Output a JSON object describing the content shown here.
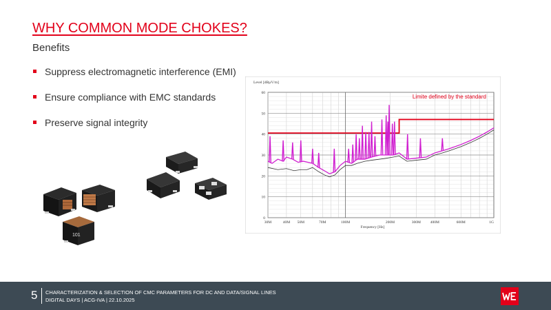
{
  "slide": {
    "title": "WHY COMMON MODE CHOKES?",
    "subtitle": "Benefits",
    "bullets": [
      "Suppress electromagnetic interference (EMI)",
      "Ensure compliance with EMC standards",
      "Preserve signal integrity"
    ],
    "accent_color": "#e2001a"
  },
  "components": {
    "part_marking": "101"
  },
  "footer": {
    "page_number": "5",
    "line1": "CHARACTERIZATION & SELECTION OF CMC PARAMETERS FOR DC AND DATA/SIGNAL LINES",
    "line2": "DIGITAL DAYS | ACG-IVA | 22.10.2025",
    "background_color": "#3d4a54",
    "logo_icon": "we-logo-icon"
  },
  "chart_data": {
    "type": "line",
    "title": "",
    "ylabel": "Level [dBµV/m]",
    "xlabel": "Frequency [Hz]",
    "x_scale": "log",
    "xlim": [
      30,
      1000
    ],
    "ylim": [
      0,
      60
    ],
    "y_ticks": [
      "0",
      "10",
      "20",
      "30",
      "40",
      "50",
      "60"
    ],
    "x_tick_values": [
      30,
      40,
      50,
      70,
      100,
      200,
      300,
      400,
      600,
      1000
    ],
    "x_tick_labels": [
      "30M",
      "40M",
      "50M",
      "70M",
      "100M",
      "200M",
      "300M",
      "400M",
      "600M",
      "1G"
    ],
    "grid": true,
    "annotation": "Limite defined by the standard",
    "series": [
      {
        "color": "#e2001a",
        "step": true,
        "x": [
          30,
          230,
          230,
          1000
        ],
        "y": [
          40.5,
          40.5,
          47,
          47
        ]
      },
      {
        "color": "#d01fd0",
        "x": [
          30,
          32,
          35,
          38,
          40,
          44,
          48,
          52,
          56,
          60,
          66,
          72,
          78,
          85,
          92,
          100,
          110,
          120,
          135,
          150,
          170,
          190,
          210,
          230,
          260,
          300,
          350,
          400,
          450,
          500,
          600,
          700,
          800,
          900,
          1000
        ],
        "y": [
          27,
          26,
          28,
          27,
          29,
          28,
          26.5,
          27,
          26.5,
          26,
          24,
          22.5,
          21,
          22,
          25,
          27,
          26,
          28,
          28,
          29,
          30,
          30,
          30,
          31,
          28,
          28.5,
          29,
          31,
          32,
          33,
          35,
          37,
          39,
          41,
          43
        ]
      },
      {
        "color": "#333333",
        "x": [
          30,
          35,
          40,
          45,
          50,
          55,
          60,
          66,
          72,
          78,
          85,
          92,
          100,
          110,
          120,
          135,
          150,
          170,
          190,
          210,
          230,
          260,
          300,
          350,
          400,
          450,
          500,
          600,
          700,
          800,
          900,
          1000
        ],
        "y": [
          24,
          23,
          23.5,
          22.5,
          23,
          23,
          24,
          22,
          20.5,
          19.5,
          20.5,
          23,
          25,
          25,
          26,
          27,
          27.5,
          28,
          28.5,
          29,
          29.5,
          27,
          27.5,
          28,
          30,
          31,
          32,
          34,
          36,
          38,
          40,
          42
        ]
      },
      {
        "color": "#d01fd0",
        "spikes": true,
        "x": [
          31,
          38,
          44,
          50,
          60,
          66,
          84,
          105,
          112,
          118,
          124,
          130,
          137,
          144,
          150,
          158,
          176,
          188,
          193,
          197,
          207,
          214,
          262,
          320,
          450
        ],
        "y": [
          39,
          37,
          36,
          37,
          33,
          31,
          33,
          33,
          35,
          40,
          38,
          44,
          41,
          41,
          46,
          39,
          47,
          49,
          46,
          54,
          45,
          46,
          40,
          38,
          38
        ]
      }
    ]
  }
}
